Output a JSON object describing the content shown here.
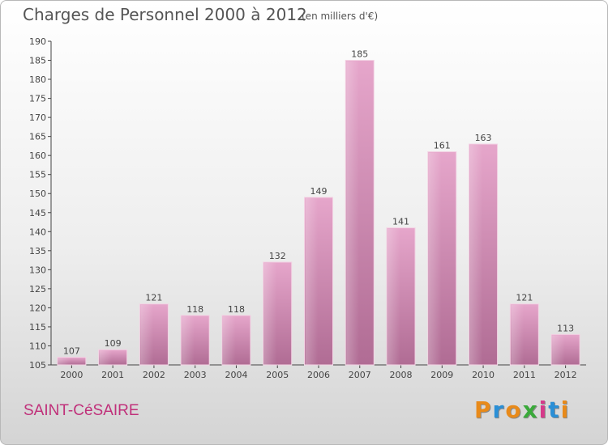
{
  "header": {
    "title": "Charges de Personnel 2000 à 2012",
    "subtitle": "(en milliers d'€)"
  },
  "footer": {
    "commune": "SAINT-CéSAIRE",
    "logo_letters": [
      "P",
      "r",
      "o",
      "x",
      "i",
      "t",
      "i"
    ],
    "logo_colors": [
      "#e88a1a",
      "#2a8fd6",
      "#e88a1a",
      "#3aaa3a",
      "#d63a8a",
      "#2a8fd6",
      "#e88a1a"
    ]
  },
  "colors": {
    "bar": "#d98cb8",
    "axis": "#444444",
    "commune": "#c0307a"
  },
  "chart_data": {
    "type": "bar",
    "title": "Charges de Personnel 2000 à 2012",
    "subtitle": "(en milliers d'€)",
    "categories": [
      "2000",
      "2001",
      "2002",
      "2003",
      "2004",
      "2005",
      "2006",
      "2007",
      "2008",
      "2009",
      "2010",
      "2011",
      "2012"
    ],
    "values": [
      107,
      109,
      121,
      118,
      118,
      132,
      149,
      185,
      141,
      161,
      163,
      121,
      113
    ],
    "ylim": [
      105,
      190
    ],
    "yticks": [
      105,
      110,
      115,
      120,
      125,
      130,
      135,
      140,
      145,
      150,
      155,
      160,
      165,
      170,
      175,
      180,
      185,
      190
    ],
    "grid": false,
    "data_labels": true
  }
}
